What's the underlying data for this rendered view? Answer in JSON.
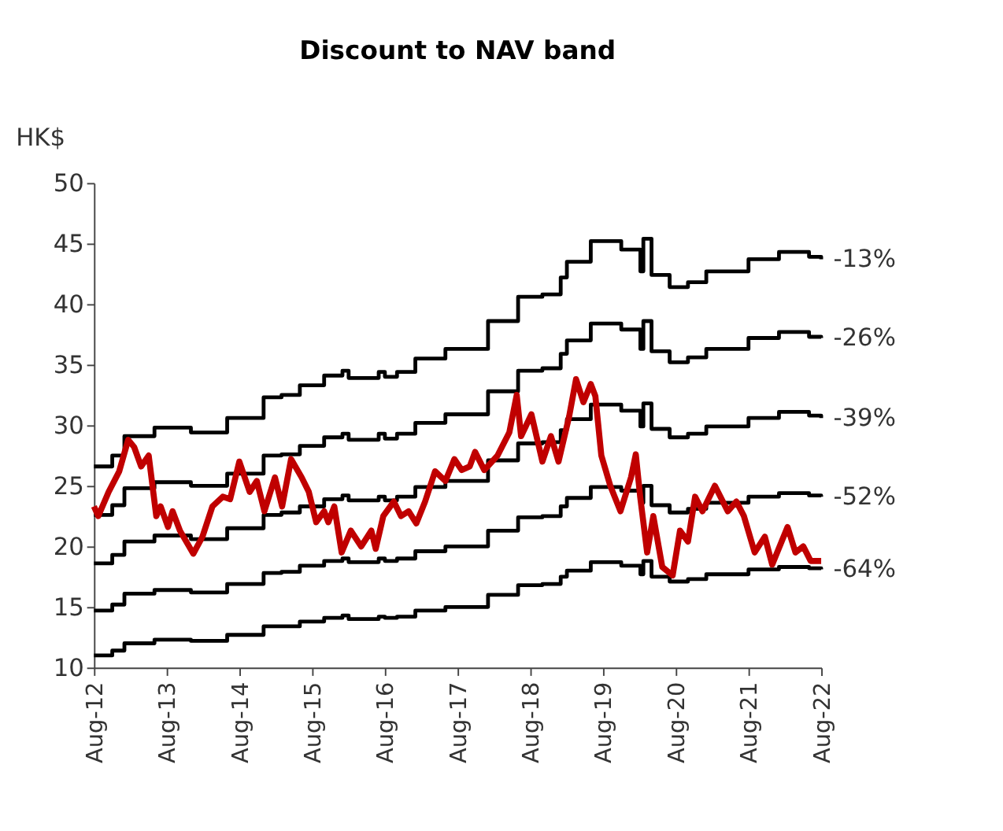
{
  "chart_data": {
    "type": "line",
    "title": "Discount to NAV band",
    "ylabel": "HK$",
    "ylim": [
      10,
      50
    ],
    "yticks": [
      10,
      15,
      20,
      25,
      30,
      35,
      40,
      45,
      50
    ],
    "xlim": [
      "2012-08-01",
      "2022-08-01"
    ],
    "xticks": [
      {
        "value": "2012-08-01",
        "label": "Aug-12"
      },
      {
        "value": "2013-08-01",
        "label": "Aug-13"
      },
      {
        "value": "2014-08-01",
        "label": "Aug-14"
      },
      {
        "value": "2015-08-01",
        "label": "Aug-15"
      },
      {
        "value": "2016-08-01",
        "label": "Aug-16"
      },
      {
        "value": "2017-08-01",
        "label": "Aug-17"
      },
      {
        "value": "2018-08-01",
        "label": "Aug-18"
      },
      {
        "value": "2019-08-01",
        "label": "Aug-19"
      },
      {
        "value": "2020-08-01",
        "label": "Aug-20"
      },
      {
        "value": "2021-08-01",
        "label": "Aug-21"
      },
      {
        "value": "2022-08-01",
        "label": "Aug-22"
      }
    ],
    "grid": false,
    "legend": false,
    "marker": "none",
    "line_style": "solid",
    "x": [
      "2012-08-01",
      "2012-11-01",
      "2013-01-01",
      "2013-06-01",
      "2013-12-01",
      "2014-06-01",
      "2014-12-01",
      "2015-03-01",
      "2015-06-01",
      "2015-10-01",
      "2016-01-01",
      "2016-02-01",
      "2016-07-01",
      "2016-08-01",
      "2016-10-01",
      "2017-01-01",
      "2017-06-01",
      "2018-01-01",
      "2018-06-01",
      "2018-10-01",
      "2019-01-01",
      "2019-02-01",
      "2019-06-01",
      "2019-11-01",
      "2020-02-05",
      "2020-02-20",
      "2020-04-01",
      "2020-07-01",
      "2020-10-01",
      "2021-01-01",
      "2021-08-01",
      "2022-01-01",
      "2022-06-01",
      "2022-08-01"
    ],
    "series": [
      {
        "name": "-13%",
        "type": "step",
        "color": "#000000",
        "values": [
          26.6,
          27.5,
          29.1,
          29.8,
          29.4,
          30.6,
          32.3,
          32.5,
          33.3,
          34.1,
          34.5,
          33.9,
          34.4,
          34.0,
          34.4,
          35.5,
          36.3,
          38.6,
          40.6,
          40.8,
          42.2,
          43.5,
          45.2,
          44.5,
          42.7,
          45.4,
          42.4,
          41.4,
          41.8,
          42.7,
          43.7,
          44.3,
          43.9,
          43.7
        ]
      },
      {
        "name": "-26%",
        "type": "step",
        "color": "#000000",
        "values": [
          22.6,
          23.4,
          24.8,
          25.3,
          25.0,
          26.0,
          27.5,
          27.6,
          28.3,
          29.0,
          29.3,
          28.8,
          29.3,
          28.9,
          29.3,
          30.2,
          30.9,
          32.8,
          34.5,
          34.7,
          35.9,
          37.0,
          38.4,
          37.9,
          36.3,
          38.6,
          36.1,
          35.2,
          35.6,
          36.3,
          37.2,
          37.7,
          37.3,
          37.2
        ]
      },
      {
        "name": "-39%",
        "type": "step",
        "color": "#000000",
        "values": [
          18.6,
          19.3,
          20.4,
          20.9,
          20.6,
          21.5,
          22.6,
          22.8,
          23.3,
          23.9,
          24.2,
          23.8,
          24.1,
          23.8,
          24.1,
          24.9,
          25.4,
          27.1,
          28.5,
          28.6,
          29.6,
          30.5,
          31.7,
          31.2,
          29.9,
          31.8,
          29.7,
          29.0,
          29.3,
          29.9,
          30.6,
          31.1,
          30.8,
          30.6
        ]
      },
      {
        "name": "-52%",
        "type": "step",
        "color": "#000000",
        "values": [
          14.7,
          15.2,
          16.1,
          16.4,
          16.2,
          16.9,
          17.8,
          17.9,
          18.4,
          18.8,
          19.0,
          18.7,
          19.0,
          18.8,
          19.0,
          19.6,
          20.0,
          21.3,
          22.4,
          22.5,
          23.3,
          24.0,
          24.9,
          24.6,
          23.6,
          25.0,
          23.4,
          22.8,
          23.1,
          23.6,
          24.1,
          24.4,
          24.2,
          24.1
        ]
      },
      {
        "name": "-64%",
        "type": "step",
        "color": "#000000",
        "values": [
          11.0,
          11.4,
          12.0,
          12.3,
          12.2,
          12.7,
          13.4,
          13.4,
          13.8,
          14.1,
          14.3,
          14.0,
          14.2,
          14.1,
          14.2,
          14.7,
          15.0,
          16.0,
          16.8,
          16.9,
          17.5,
          18.0,
          18.7,
          18.4,
          17.7,
          18.8,
          17.5,
          17.1,
          17.3,
          17.7,
          18.1,
          18.3,
          18.2,
          18.1
        ]
      },
      {
        "type": "line",
        "color": "#c00000",
        "x": [
          "2012-08-01",
          "2012-08-23",
          "2012-10-14",
          "2012-12-06",
          "2013-01-20",
          "2013-02-19",
          "2013-03-26",
          "2013-05-03",
          "2013-06-10",
          "2013-07-02",
          "2013-08-08",
          "2013-08-31",
          "2013-10-07",
          "2013-12-13",
          "2014-01-28",
          "2014-03-19",
          "2014-05-10",
          "2014-06-16",
          "2014-08-01",
          "2014-09-22",
          "2014-10-28",
          "2014-12-05",
          "2015-01-27",
          "2015-03-04",
          "2015-04-18",
          "2015-06-10",
          "2015-07-16",
          "2015-08-22",
          "2015-10-01",
          "2015-10-22",
          "2015-11-21",
          "2015-12-28",
          "2016-02-12",
          "2016-04-04",
          "2016-05-25",
          "2016-06-16",
          "2016-07-24",
          "2016-09-15",
          "2016-10-21",
          "2016-11-28",
          "2017-01-06",
          "2017-02-19",
          "2017-04-10",
          "2017-06-01",
          "2017-07-16",
          "2017-08-22",
          "2017-10-01",
          "2017-10-28",
          "2017-12-13",
          "2018-02-18",
          "2018-04-18",
          "2018-05-25",
          "2018-06-16",
          "2018-08-07",
          "2018-10-01",
          "2018-11-13",
          "2018-12-21",
          "2019-02-12",
          "2019-03-19",
          "2019-04-25",
          "2019-06-01",
          "2019-06-24",
          "2019-07-24",
          "2019-09-07",
          "2019-10-28",
          "2019-12-20",
          "2020-01-13",
          "2020-02-04",
          "2020-03-10",
          "2020-04-10",
          "2020-05-25",
          "2020-07-16",
          "2020-08-22",
          "2020-10-01",
          "2020-11-06",
          "2020-12-13",
          "2021-02-13",
          "2021-04-19",
          "2021-06-01",
          "2021-07-09",
          "2021-09-01",
          "2021-10-22",
          "2021-11-28",
          "2022-02-13",
          "2022-03-25",
          "2022-05-03",
          "2022-06-09",
          "2022-08-01"
        ],
        "values": [
          23.3,
          22.5,
          24.5,
          26.2,
          28.8,
          28.2,
          26.6,
          27.5,
          22.5,
          23.3,
          21.6,
          22.9,
          21.3,
          19.4,
          20.8,
          23.3,
          24.1,
          23.9,
          27.0,
          24.5,
          25.4,
          22.9,
          25.7,
          23.3,
          27.2,
          25.7,
          24.5,
          22.0,
          22.9,
          22.0,
          23.3,
          19.5,
          21.3,
          20.0,
          21.3,
          19.8,
          22.5,
          23.7,
          22.5,
          22.9,
          21.9,
          23.7,
          26.2,
          25.4,
          27.2,
          26.3,
          26.6,
          27.8,
          26.3,
          27.5,
          29.4,
          32.5,
          29.1,
          30.9,
          27.0,
          29.1,
          27.0,
          30.7,
          33.8,
          31.9,
          33.4,
          32.4,
          27.5,
          25.0,
          22.9,
          25.7,
          27.6,
          24.1,
          19.5,
          22.5,
          18.3,
          17.6,
          21.3,
          20.4,
          24.1,
          22.9,
          25.0,
          22.9,
          23.7,
          22.5,
          19.5,
          20.8,
          18.5,
          21.6,
          19.5,
          20.0,
          18.8,
          18.8
        ]
      }
    ]
  }
}
